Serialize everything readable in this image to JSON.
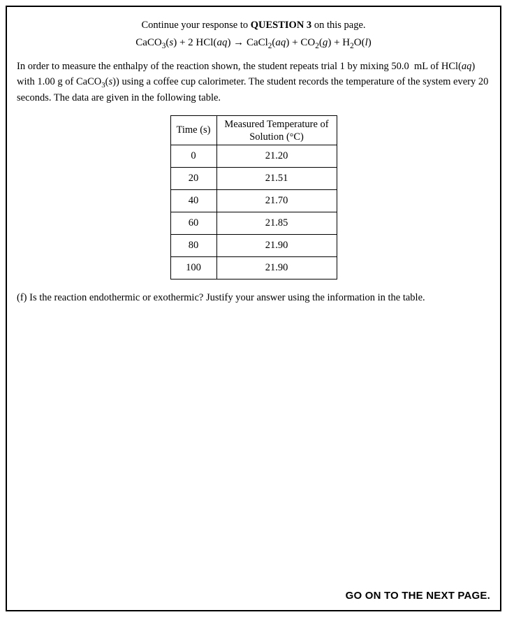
{
  "header": {
    "prefix": "Continue your response to ",
    "question_ref": "QUESTION 3",
    "suffix": " on this page."
  },
  "equation": {
    "lhs_1_base": "CaCO",
    "lhs_1_sub": "3",
    "lhs_1_state": "s",
    "plus_a": " + 2 HCl(",
    "lhs_2_state": "aq",
    "arrow": ") → ",
    "rhs_1_base": "CaCl",
    "rhs_1_sub": "2",
    "rhs_1_state": "aq",
    "plus_b": ") + CO",
    "rhs_2_sub": "2",
    "rhs_2_state": "g",
    "plus_c": ") + H",
    "rhs_3_sub": "2",
    "rhs_3_o": "O(",
    "rhs_3_state": "l",
    "end": ")"
  },
  "paragraph": {
    "p1": "In order to measure the enthalpy of the reaction shown, the student repeats trial 1 by mixing 50.0  mL of HCl(",
    "p1_state": "aq",
    "p2": ") with 1.00 g of CaCO",
    "p2_sub": "3",
    "p2_state": "s",
    "p3": ") using a coffee cup calorimeter. The student records the temperature of the system every 20 seconds. The data are given in the following table."
  },
  "table": {
    "col_time_label": "Time (s)",
    "col_temp_line1": "Measured Temperature of",
    "col_temp_line2_a": "Solution (",
    "col_temp_line2_deg": "°",
    "col_temp_line2_b": "C)",
    "rows": [
      {
        "t": "0",
        "v": "21.20"
      },
      {
        "t": "20",
        "v": "21.51"
      },
      {
        "t": "40",
        "v": "21.70"
      },
      {
        "t": "60",
        "v": "21.85"
      },
      {
        "t": "80",
        "v": "21.90"
      },
      {
        "t": "100",
        "v": "21.90"
      }
    ]
  },
  "question_f": "(f) Is the reaction endothermic or exothermic? Justify your answer using the information in the table.",
  "footer": "GO ON TO THE NEXT PAGE."
}
